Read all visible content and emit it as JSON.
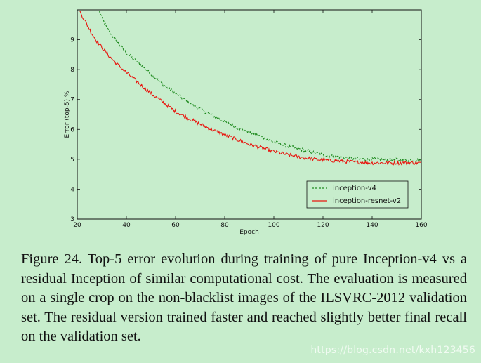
{
  "chart_data": {
    "type": "line",
    "title": "",
    "xlabel": "Epoch",
    "ylabel": "Error (top-5) %",
    "xlim": [
      20,
      160
    ],
    "ylim": [
      3,
      10
    ],
    "xticks": [
      20,
      40,
      60,
      80,
      100,
      120,
      140,
      160
    ],
    "yticks": [
      3,
      4,
      5,
      6,
      7,
      8,
      9
    ],
    "legend_position": "bottom-right",
    "series": [
      {
        "name": "inception-v4",
        "style": "dashed",
        "color": "#1e8a1e",
        "x": [
          29,
          30,
          32,
          35,
          38,
          40,
          43,
          46,
          50,
          55,
          60,
          65,
          70,
          75,
          80,
          85,
          90,
          95,
          100,
          105,
          110,
          115,
          120,
          125,
          130,
          135,
          140,
          145,
          150,
          155,
          160
        ],
        "y": [
          9.95,
          9.75,
          9.4,
          9.05,
          8.75,
          8.55,
          8.35,
          8.15,
          7.85,
          7.5,
          7.2,
          6.92,
          6.68,
          6.46,
          6.26,
          6.06,
          5.9,
          5.75,
          5.58,
          5.45,
          5.35,
          5.25,
          5.15,
          5.1,
          5.05,
          5.0,
          5.0,
          4.98,
          4.98,
          4.97,
          4.97
        ]
      },
      {
        "name": "inception-resnet-v2",
        "style": "solid",
        "color": "#e8150e",
        "x": [
          21,
          22,
          24,
          26,
          28,
          30,
          33,
          36,
          40,
          45,
          50,
          55,
          60,
          65,
          70,
          75,
          80,
          85,
          90,
          95,
          100,
          105,
          110,
          115,
          120,
          125,
          130,
          135,
          140,
          145,
          150,
          155,
          160
        ],
        "y": [
          9.95,
          9.8,
          9.5,
          9.2,
          8.95,
          8.75,
          8.45,
          8.2,
          7.9,
          7.55,
          7.2,
          6.9,
          6.6,
          6.38,
          6.18,
          5.98,
          5.82,
          5.66,
          5.5,
          5.38,
          5.26,
          5.16,
          5.08,
          5.02,
          4.97,
          4.95,
          4.92,
          4.9,
          4.88,
          4.88,
          4.88,
          4.88,
          4.88
        ]
      }
    ]
  },
  "caption": "Figure 24. Top-5 error evolution during training of pure Inception-v4 vs a residual Inception of similar computational cost. The evaluation is measured on a single crop on the non-blacklist images of the ILSVRC-2012 validation set. The residual version trained faster and reached slightly better final recall on the validation set.",
  "watermark": "https://blog.csdn.net/kxh123456"
}
